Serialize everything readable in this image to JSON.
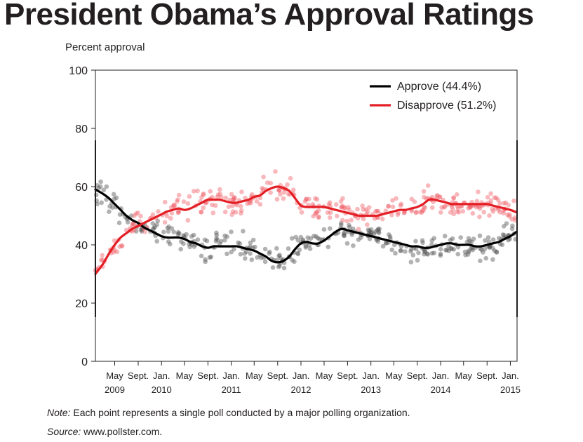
{
  "page": {
    "title": "President Obama’s Approval Ratings",
    "note_label": "Note:",
    "note_text": "Each point represents a single poll conducted by a major polling organization.",
    "source_label": "Source:",
    "source_text": "www.pollster.com."
  },
  "chart_data": {
    "type": "line",
    "ylabel": "Percent approval",
    "ylim": [
      0,
      100
    ],
    "yticks": [
      0,
      20,
      40,
      60,
      80,
      100
    ],
    "xlim": [
      "2009-01-20",
      "2015-02-05"
    ],
    "xticks": [
      {
        "date": "2009-05-01",
        "label": "May",
        "year": "2009"
      },
      {
        "date": "2009-09-01",
        "label": "Sept.",
        "year": ""
      },
      {
        "date": "2010-01-01",
        "label": "Jan.",
        "year": "2010"
      },
      {
        "date": "2010-05-01",
        "label": "May",
        "year": ""
      },
      {
        "date": "2010-09-01",
        "label": "Sept.",
        "year": ""
      },
      {
        "date": "2011-01-01",
        "label": "Jan.",
        "year": "2011"
      },
      {
        "date": "2011-05-01",
        "label": "May",
        "year": ""
      },
      {
        "date": "2011-09-01",
        "label": "Sept.",
        "year": ""
      },
      {
        "date": "2012-01-01",
        "label": "Jan.",
        "year": "2012"
      },
      {
        "date": "2012-05-01",
        "label": "May",
        "year": ""
      },
      {
        "date": "2012-09-01",
        "label": "Sept.",
        "year": ""
      },
      {
        "date": "2013-01-01",
        "label": "Jan.",
        "year": "2013"
      },
      {
        "date": "2013-05-01",
        "label": "May",
        "year": ""
      },
      {
        "date": "2013-09-01",
        "label": "Sept.",
        "year": ""
      },
      {
        "date": "2014-01-01",
        "label": "Jan.",
        "year": "2014"
      },
      {
        "date": "2014-05-01",
        "label": "May",
        "year": ""
      },
      {
        "date": "2014-09-01",
        "label": "Sept.",
        "year": ""
      },
      {
        "date": "2015-01-01",
        "label": "Jan.",
        "year": "2015"
      }
    ],
    "legend_position": "top-right",
    "grid": false,
    "series": [
      {
        "name": "Approve (44.4%)",
        "color": "#000000",
        "dot_color": "#555555",
        "x": [
          "2009-01-20",
          "2009-03-01",
          "2009-04-01",
          "2009-05-01",
          "2009-06-01",
          "2009-07-01",
          "2009-08-01",
          "2009-09-01",
          "2009-10-01",
          "2009-11-01",
          "2009-12-01",
          "2010-01-01",
          "2010-02-01",
          "2010-03-01",
          "2010-04-01",
          "2010-05-01",
          "2010-06-01",
          "2010-07-01",
          "2010-08-01",
          "2010-09-01",
          "2010-10-01",
          "2010-11-01",
          "2010-12-01",
          "2011-01-01",
          "2011-02-01",
          "2011-03-01",
          "2011-04-01",
          "2011-05-01",
          "2011-06-01",
          "2011-07-01",
          "2011-08-01",
          "2011-09-01",
          "2011-10-01",
          "2011-11-01",
          "2011-12-01",
          "2012-01-01",
          "2012-02-01",
          "2012-03-01",
          "2012-04-01",
          "2012-05-01",
          "2012-06-01",
          "2012-07-01",
          "2012-08-01",
          "2012-09-01",
          "2012-10-01",
          "2012-11-01",
          "2012-12-01",
          "2013-01-01",
          "2013-02-01",
          "2013-03-01",
          "2013-04-01",
          "2013-05-01",
          "2013-06-01",
          "2013-07-01",
          "2013-08-01",
          "2013-09-01",
          "2013-10-01",
          "2013-11-01",
          "2013-12-01",
          "2014-01-01",
          "2014-02-01",
          "2014-03-01",
          "2014-04-01",
          "2014-05-01",
          "2014-06-01",
          "2014-07-01",
          "2014-08-01",
          "2014-09-01",
          "2014-10-01",
          "2014-11-01",
          "2014-12-01",
          "2015-01-01",
          "2015-02-01"
        ],
        "values": [
          59,
          57.5,
          56,
          54,
          52,
          50,
          48.5,
          47.5,
          46,
          45,
          44,
          43,
          42.5,
          42.5,
          42.5,
          42,
          41,
          40.5,
          39.5,
          39,
          39.5,
          39.5,
          39.5,
          39.5,
          39.5,
          39,
          38.5,
          38,
          37,
          36,
          34.5,
          34,
          34.5,
          36,
          38.5,
          40.5,
          41,
          40.5,
          40.5,
          41.5,
          43,
          44.5,
          45.5,
          45,
          44.5,
          44,
          43.5,
          43,
          42.5,
          42,
          41.5,
          41,
          40.5,
          40,
          39.5,
          39.5,
          39,
          39,
          39.5,
          40,
          40.5,
          40.5,
          40,
          40,
          40,
          39.5,
          39.5,
          40,
          40.5,
          41,
          42,
          43,
          44.4
        ]
      },
      {
        "name": "Disapprove (51.2%)",
        "color": "#e31e24",
        "dot_color": "#f0626a",
        "x": [
          "2009-01-20",
          "2009-03-01",
          "2009-04-01",
          "2009-05-01",
          "2009-06-01",
          "2009-07-01",
          "2009-08-01",
          "2009-09-01",
          "2009-10-01",
          "2009-11-01",
          "2009-12-01",
          "2010-01-01",
          "2010-02-01",
          "2010-03-01",
          "2010-04-01",
          "2010-05-01",
          "2010-06-01",
          "2010-07-01",
          "2010-08-01",
          "2010-09-01",
          "2010-10-01",
          "2010-11-01",
          "2010-12-01",
          "2011-01-01",
          "2011-02-01",
          "2011-03-01",
          "2011-04-01",
          "2011-05-01",
          "2011-06-01",
          "2011-07-01",
          "2011-08-01",
          "2011-09-01",
          "2011-10-01",
          "2011-11-01",
          "2011-12-01",
          "2012-01-01",
          "2012-02-01",
          "2012-03-01",
          "2012-04-01",
          "2012-05-01",
          "2012-06-01",
          "2012-07-01",
          "2012-08-01",
          "2012-09-01",
          "2012-10-01",
          "2012-11-01",
          "2012-12-01",
          "2013-01-01",
          "2013-02-01",
          "2013-03-01",
          "2013-04-01",
          "2013-05-01",
          "2013-06-01",
          "2013-07-01",
          "2013-08-01",
          "2013-09-01",
          "2013-10-01",
          "2013-11-01",
          "2013-12-01",
          "2014-01-01",
          "2014-02-01",
          "2014-03-01",
          "2014-04-01",
          "2014-05-01",
          "2014-06-01",
          "2014-07-01",
          "2014-08-01",
          "2014-09-01",
          "2014-10-01",
          "2014-11-01",
          "2014-12-01",
          "2015-01-01",
          "2015-02-01"
        ],
        "values": [
          30,
          33.5,
          37,
          40,
          42.5,
          44,
          45.5,
          46.5,
          47.5,
          48.5,
          49.5,
          50.5,
          51.5,
          52,
          52.5,
          52,
          52.5,
          53.5,
          54.5,
          55.5,
          55.5,
          55.5,
          55,
          54.5,
          54.5,
          55,
          55.5,
          56.5,
          57,
          58.5,
          59.5,
          60,
          59.5,
          58.5,
          56,
          53.5,
          53,
          53,
          53,
          53,
          52.5,
          52,
          51.5,
          51,
          50.5,
          50,
          50,
          50,
          50,
          50.5,
          51,
          51.5,
          52,
          52,
          52.5,
          53,
          54,
          55.5,
          55.5,
          55,
          54.5,
          54,
          54,
          54,
          54,
          54,
          54,
          54,
          53.5,
          53,
          52.5,
          52,
          51.2
        ]
      }
    ]
  }
}
